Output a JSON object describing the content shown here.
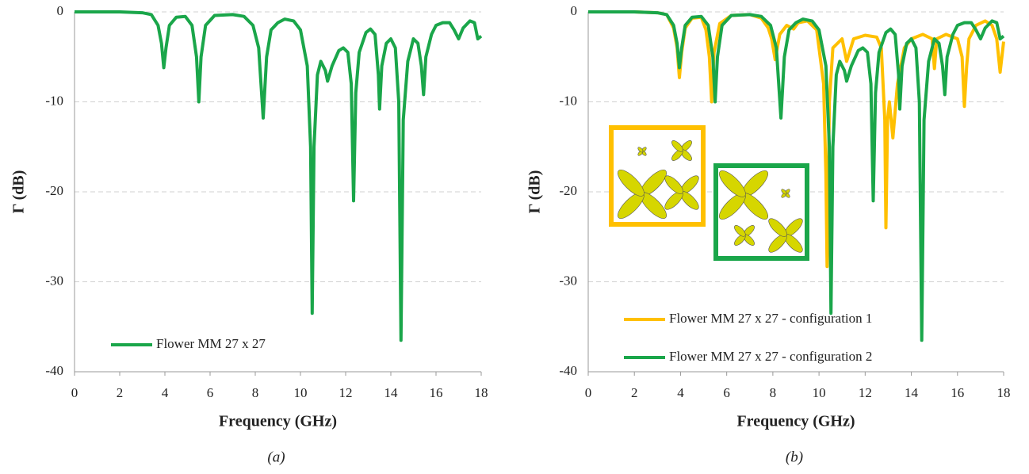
{
  "chart_data": [
    {
      "type": "line",
      "caption": "(a)",
      "x_label": "Frequency (GHz)",
      "y_label": "Γ (dB)",
      "xlim": [
        0,
        18
      ],
      "xticks": [
        0,
        2,
        4,
        6,
        8,
        10,
        12,
        14,
        16,
        18
      ],
      "ylim": [
        -40,
        0
      ],
      "yticks": [
        0,
        -10,
        -20,
        -30,
        -40
      ],
      "grid": true,
      "series": [
        {
          "name": "Flower MM 27 x 27",
          "color": "#1aa64a",
          "x": [
            0,
            1,
            2,
            3,
            3.4,
            3.7,
            3.85,
            3.95,
            4.05,
            4.2,
            4.5,
            4.9,
            5.2,
            5.4,
            5.5,
            5.6,
            5.8,
            6.2,
            7,
            7.5,
            7.9,
            8.15,
            8.35,
            8.5,
            8.7,
            9,
            9.3,
            9.7,
            10,
            10.3,
            10.45,
            10.52,
            10.6,
            10.75,
            10.9,
            11.1,
            11.2,
            11.4,
            11.7,
            11.9,
            12.1,
            12.25,
            12.35,
            12.45,
            12.6,
            12.9,
            13.1,
            13.3,
            13.45,
            13.5,
            13.6,
            13.8,
            14,
            14.2,
            14.35,
            14.45,
            14.55,
            14.75,
            15,
            15.2,
            15.35,
            15.45,
            15.55,
            15.8,
            16,
            16.3,
            16.6,
            16.8,
            17,
            17.2,
            17.5,
            17.7,
            17.85,
            18
          ],
          "values": [
            0,
            0,
            0,
            -0.1,
            -0.3,
            -1.5,
            -3.5,
            -6.2,
            -4,
            -1.5,
            -0.6,
            -0.5,
            -1.5,
            -5,
            -10,
            -5,
            -1.5,
            -0.4,
            -0.3,
            -0.5,
            -1.5,
            -4,
            -11.8,
            -5,
            -2,
            -1.2,
            -0.8,
            -1,
            -2,
            -6,
            -15,
            -33.5,
            -15,
            -7,
            -5.5,
            -6.5,
            -7.7,
            -6,
            -4.3,
            -4,
            -4.5,
            -8,
            -21,
            -9,
            -4.5,
            -2.3,
            -1.9,
            -2.5,
            -7,
            -10.8,
            -6,
            -3.5,
            -3,
            -4,
            -10,
            -36.5,
            -12,
            -5.5,
            -3,
            -3.5,
            -6,
            -9.2,
            -5,
            -2.5,
            -1.5,
            -1.2,
            -1.2,
            -2,
            -3,
            -1.8,
            -1,
            -1.2,
            -3,
            -2.7
          ]
        }
      ]
    },
    {
      "type": "line",
      "caption": "(b)",
      "x_label": "Frequency (GHz)",
      "y_label": "Γ (dB)",
      "xlim": [
        0,
        18
      ],
      "xticks": [
        0,
        2,
        4,
        6,
        8,
        10,
        12,
        14,
        16,
        18
      ],
      "ylim": [
        -40,
        0
      ],
      "yticks": [
        0,
        -10,
        -20,
        -30,
        -40
      ],
      "grid": true,
      "series": [
        {
          "name": "Flower MM 27 x 27 - configuration 1",
          "color": "#ffc000",
          "x": [
            0,
            1,
            2,
            3,
            3.4,
            3.7,
            3.85,
            3.95,
            4.05,
            4.2,
            4.5,
            4.9,
            5.1,
            5.25,
            5.35,
            5.45,
            5.7,
            6.2,
            7,
            7.5,
            7.8,
            7.95,
            8.1,
            8.3,
            8.6,
            8.9,
            9.1,
            9.5,
            9.9,
            10.2,
            10.3,
            10.35,
            10.45,
            10.6,
            11,
            11.2,
            11.5,
            12,
            12.5,
            12.7,
            12.85,
            12.9,
            12.97,
            13.05,
            13.2,
            13.4,
            13.7,
            14,
            14.5,
            14.9,
            15,
            15.1,
            15.5,
            16,
            16.2,
            16.3,
            16.4,
            16.5,
            16.8,
            17.2,
            17.5,
            17.7,
            17.85,
            18
          ],
          "values": [
            0,
            0,
            0,
            -0.1,
            -0.3,
            -1.8,
            -4,
            -7.3,
            -4.5,
            -1.8,
            -0.7,
            -0.6,
            -2,
            -5,
            -10,
            -4.5,
            -1.3,
            -0.4,
            -0.3,
            -0.7,
            -1.8,
            -3,
            -5.3,
            -2.5,
            -1.5,
            -1.9,
            -1.2,
            -1,
            -2,
            -8,
            -18,
            -28.3,
            -10,
            -4,
            -3,
            -5.5,
            -3,
            -2.6,
            -2.8,
            -4,
            -12,
            -24,
            -12,
            -10,
            -14,
            -8,
            -4,
            -3,
            -2.5,
            -3,
            -6.3,
            -3,
            -2.5,
            -3,
            -5,
            -10.5,
            -6,
            -3,
            -1.5,
            -1,
            -1.5,
            -3,
            -6.7,
            -3.3
          ]
        },
        {
          "name": "Flower MM 27 x 27 - configuration 2",
          "color": "#1aa64a",
          "x": [
            0,
            1,
            2,
            3,
            3.4,
            3.7,
            3.85,
            3.95,
            4.05,
            4.2,
            4.5,
            4.9,
            5.2,
            5.4,
            5.5,
            5.6,
            5.8,
            6.2,
            7,
            7.5,
            7.9,
            8.15,
            8.35,
            8.5,
            8.7,
            9,
            9.3,
            9.7,
            10,
            10.3,
            10.45,
            10.52,
            10.6,
            10.75,
            10.9,
            11.1,
            11.2,
            11.4,
            11.7,
            11.9,
            12.1,
            12.25,
            12.35,
            12.45,
            12.6,
            12.9,
            13.1,
            13.3,
            13.45,
            13.5,
            13.6,
            13.8,
            14,
            14.2,
            14.35,
            14.45,
            14.55,
            14.75,
            15,
            15.2,
            15.35,
            15.45,
            15.55,
            15.8,
            16,
            16.3,
            16.6,
            16.8,
            17,
            17.2,
            17.5,
            17.7,
            17.85,
            18
          ],
          "values": [
            0,
            0,
            0,
            -0.1,
            -0.3,
            -1.5,
            -3.5,
            -6.2,
            -4,
            -1.5,
            -0.6,
            -0.5,
            -1.5,
            -5,
            -10,
            -5,
            -1.5,
            -0.4,
            -0.3,
            -0.5,
            -1.5,
            -4,
            -11.8,
            -5,
            -2,
            -1.2,
            -0.8,
            -1,
            -2,
            -6,
            -15,
            -33.5,
            -15,
            -7,
            -5.5,
            -6.5,
            -7.7,
            -6,
            -4.3,
            -4,
            -4.5,
            -8,
            -21,
            -9,
            -4.5,
            -2.3,
            -1.9,
            -2.5,
            -7,
            -10.8,
            -6,
            -3.5,
            -3,
            -4,
            -10,
            -36.5,
            -12,
            -5.5,
            -3,
            -3.5,
            -6,
            -9.2,
            -5,
            -2.5,
            -1.5,
            -1.2,
            -1.2,
            -2,
            -3,
            -1.8,
            -1,
            -1.2,
            -3,
            -2.7
          ]
        }
      ]
    }
  ]
}
